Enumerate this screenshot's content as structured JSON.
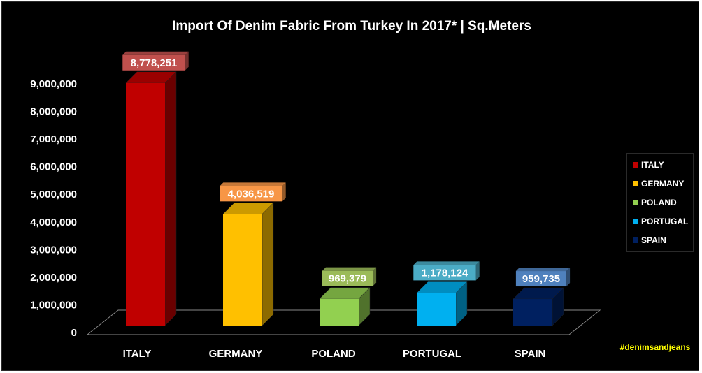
{
  "chart_data": {
    "type": "bar",
    "title": "Import Of Denim Fabric From Turkey In 2017* | Sq.Meters",
    "categories": [
      "ITALY",
      "GERMANY",
      "POLAND",
      "PORTUGAL",
      "SPAIN"
    ],
    "values": [
      8778251,
      4036519,
      969379,
      1178124,
      959735
    ],
    "value_labels": [
      "8,778,251",
      "4,036,519",
      "969,379",
      "1,178,124",
      "959,735"
    ],
    "colors": [
      "#c00000",
      "#ffc000",
      "#92d050",
      "#00b0f0",
      "#002060"
    ],
    "label_box_colors": [
      "#c0504d",
      "#f79646",
      "#9bbb59",
      "#4bacc6",
      "#4f81bd"
    ],
    "ylim": [
      0,
      9000000
    ],
    "yticks": [
      0,
      1000000,
      2000000,
      3000000,
      4000000,
      5000000,
      6000000,
      7000000,
      8000000,
      9000000
    ],
    "ytick_labels": [
      "0",
      "1,000,000",
      "2,000,000",
      "3,000,000",
      "4,000,000",
      "5,000,000",
      "6,000,000",
      "7,000,000",
      "8,000,000",
      "9,000,000"
    ],
    "xlabel": "",
    "ylabel": "",
    "grid": false,
    "legend": {
      "position": "right",
      "entries": [
        "ITALY",
        "GERMANY",
        "POLAND",
        "PORTUGAL",
        "SPAIN"
      ]
    },
    "annotation": "#denimsandjeans"
  }
}
